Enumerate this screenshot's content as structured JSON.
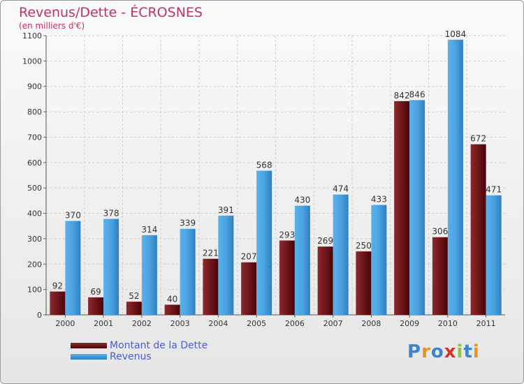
{
  "header": {
    "title": "Revenus/Dette - ÉCROSNES",
    "subtitle": "(en milliers d'€)"
  },
  "chart_data": {
    "type": "bar",
    "title": "Revenus/Dette - ÉCROSNES",
    "ylabel": "(en milliers d'€)",
    "xlabel": "",
    "ylim": [
      0,
      1100
    ],
    "yticks": [
      0,
      100,
      200,
      300,
      400,
      500,
      600,
      700,
      800,
      900,
      1000,
      1100
    ],
    "grid": true,
    "legend_position": "bottom-left",
    "categories": [
      "2000",
      "2001",
      "2002",
      "2003",
      "2004",
      "2005",
      "2006",
      "2007",
      "2008",
      "2009",
      "2010",
      "2011"
    ],
    "series": [
      {
        "name": "Montant de la Dette",
        "color": "#6b0f14",
        "values": [
          92,
          69,
          52,
          40,
          221,
          207,
          293,
          269,
          250,
          842,
          306,
          672
        ]
      },
      {
        "name": "Revenus",
        "color": "#4aa3e0",
        "values": [
          370,
          378,
          314,
          339,
          391,
          568,
          430,
          474,
          433,
          846,
          1084,
          471
        ]
      }
    ]
  },
  "legend": {
    "items": [
      {
        "label": "Montant de la Dette",
        "color": "#6b0f14"
      },
      {
        "label": "Revenus",
        "color": "#4aa3e0"
      }
    ]
  },
  "logo": {
    "text": "Proxiti"
  }
}
